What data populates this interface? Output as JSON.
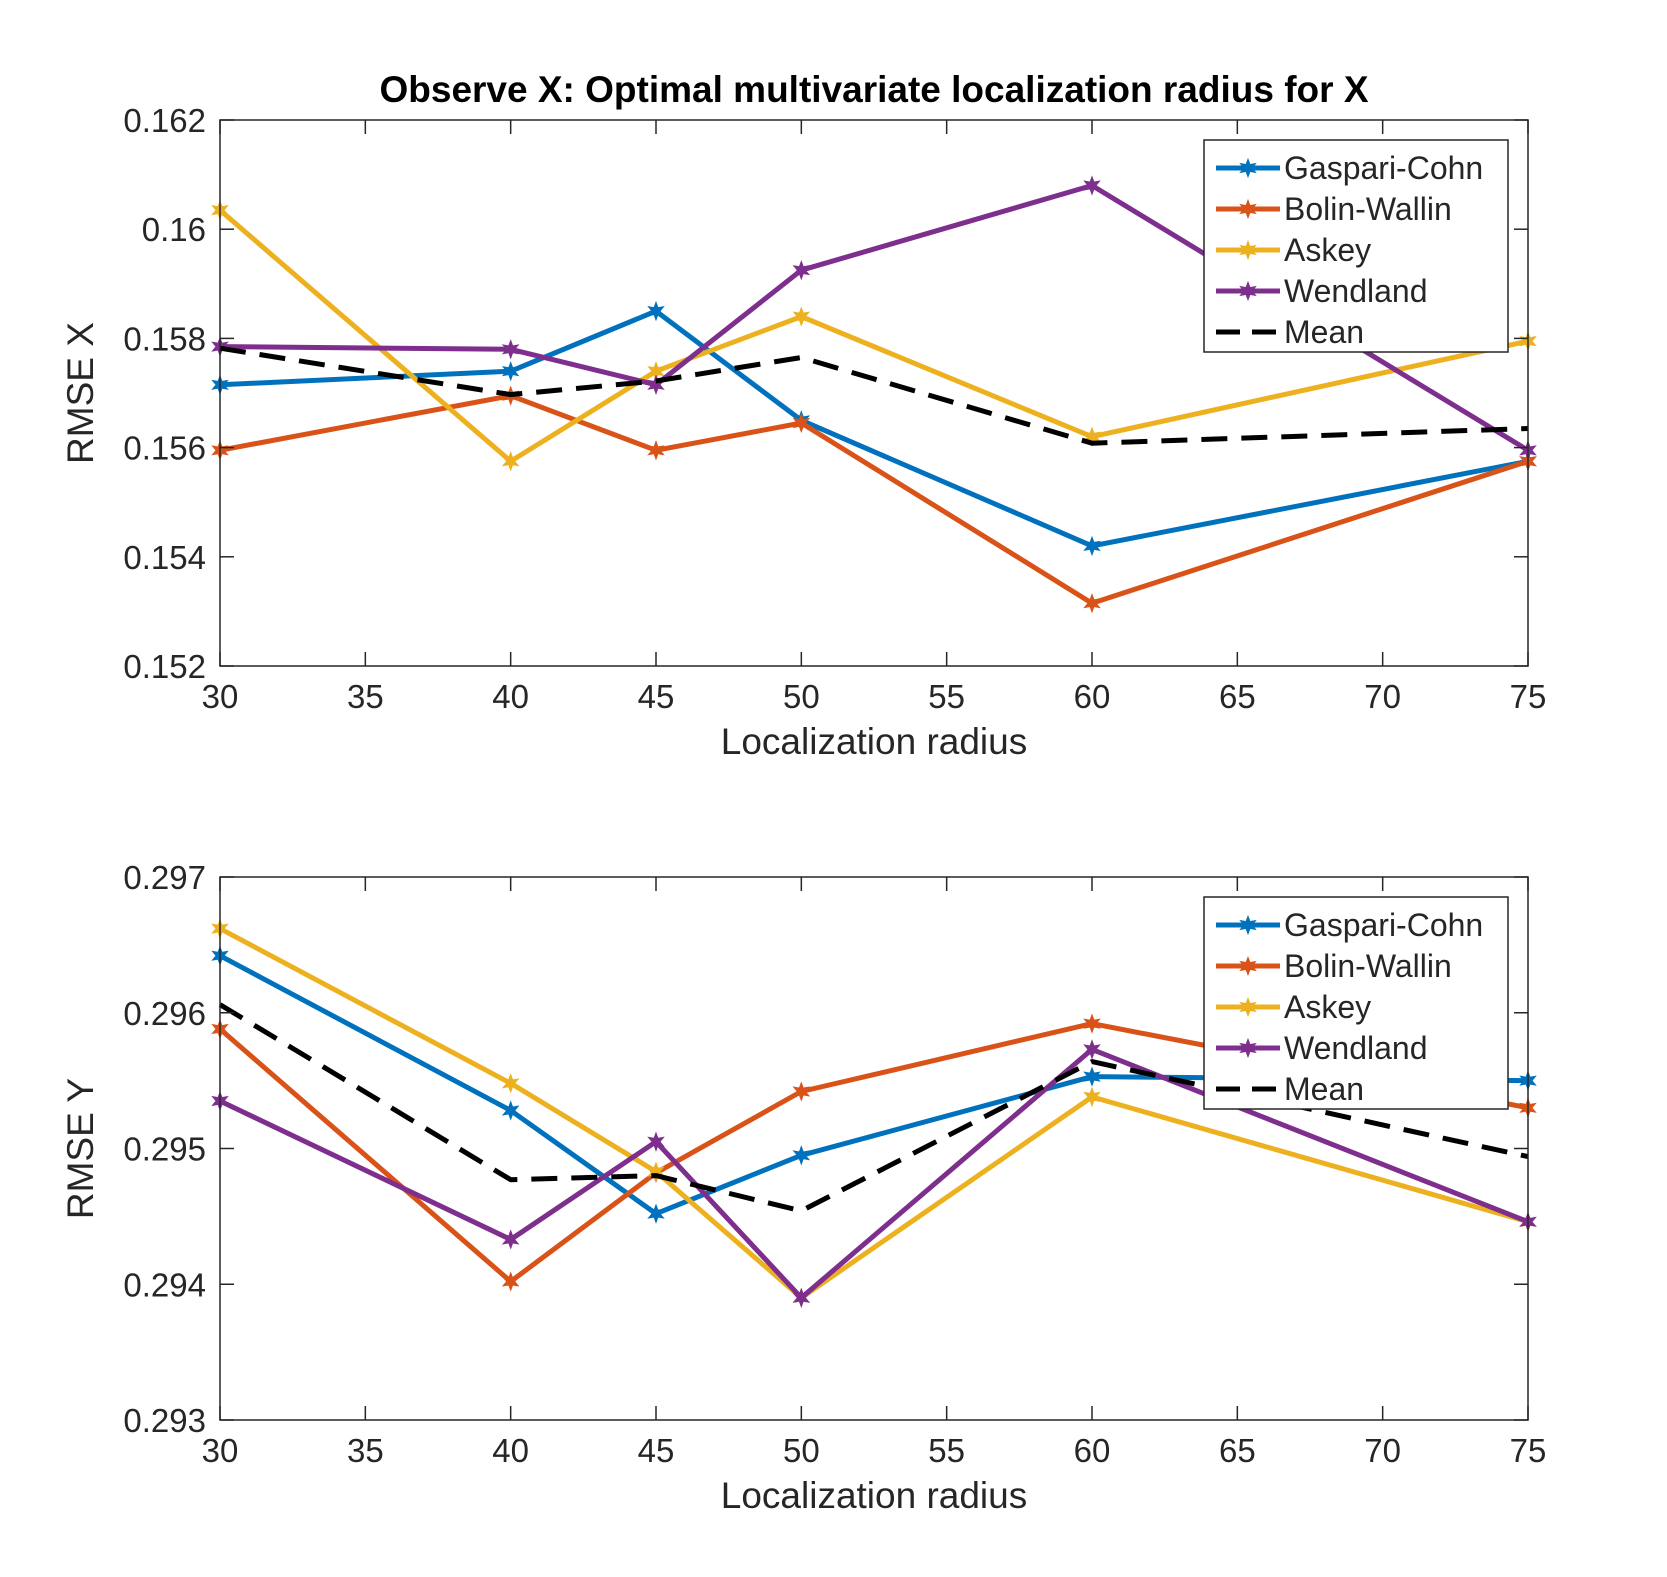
{
  "chart_data": [
    {
      "type": "line",
      "title": "Observe X: Optimal multivariate localization radius for X",
      "xlabel": "Localization radius",
      "ylabel": "RMSE X",
      "xlim": [
        30,
        75
      ],
      "ylim": [
        0.152,
        0.162
      ],
      "xticks": [
        30,
        35,
        40,
        45,
        50,
        55,
        60,
        65,
        70,
        75
      ],
      "yticks": [
        0.152,
        0.154,
        0.156,
        0.158,
        0.16,
        0.162
      ],
      "ytick_labels": [
        "0.152",
        "0.154",
        "0.156",
        "0.158",
        "0.16",
        "0.162"
      ],
      "grid": false,
      "legend": "top-right",
      "x": [
        30,
        40,
        45,
        50,
        60,
        75
      ],
      "series": [
        {
          "name": "Gaspari-Cohn",
          "color": "#0072BD",
          "dash": false,
          "marker": true,
          "values": [
            0.15715,
            0.1574,
            0.1585,
            0.1565,
            0.1542,
            0.15575
          ]
        },
        {
          "name": "Bolin-Wallin",
          "color": "#D95319",
          "dash": false,
          "marker": true,
          "values": [
            0.15595,
            0.15695,
            0.15595,
            0.15645,
            0.15315,
            0.15575
          ]
        },
        {
          "name": "Askey",
          "color": "#EDB120",
          "dash": false,
          "marker": true,
          "values": [
            0.16035,
            0.15575,
            0.1574,
            0.1584,
            0.1562,
            0.15795
          ]
        },
        {
          "name": "Wendland",
          "color": "#7E2F8E",
          "dash": false,
          "marker": true,
          "values": [
            0.15785,
            0.1578,
            0.15715,
            0.15925,
            0.1608,
            0.15595
          ]
        },
        {
          "name": "Mean",
          "color": "#000000",
          "dash": true,
          "marker": false,
          "values": [
            0.15782,
            0.15697,
            0.15722,
            0.15765,
            0.15608,
            0.15635
          ]
        }
      ]
    },
    {
      "type": "line",
      "title": "",
      "xlabel": "Localization radius",
      "ylabel": "RMSE Y",
      "xlim": [
        30,
        75
      ],
      "ylim": [
        0.293,
        0.297
      ],
      "xticks": [
        30,
        35,
        40,
        45,
        50,
        55,
        60,
        65,
        70,
        75
      ],
      "yticks": [
        0.293,
        0.294,
        0.295,
        0.296,
        0.297
      ],
      "ytick_labels": [
        "0.293",
        "0.294",
        "0.295",
        "0.296",
        "0.297"
      ],
      "grid": false,
      "legend": "top-right",
      "x": [
        30,
        40,
        45,
        50,
        60,
        75
      ],
      "series": [
        {
          "name": "Gaspari-Cohn",
          "color": "#0072BD",
          "dash": false,
          "marker": true,
          "values": [
            0.29642,
            0.29528,
            0.29452,
            0.29495,
            0.29553,
            0.2955
          ]
        },
        {
          "name": "Bolin-Wallin",
          "color": "#D95319",
          "dash": false,
          "marker": true,
          "values": [
            0.29588,
            0.29402,
            0.29482,
            0.29542,
            0.29592,
            0.2953
          ]
        },
        {
          "name": "Askey",
          "color": "#EDB120",
          "dash": false,
          "marker": true,
          "values": [
            0.29662,
            0.29548,
            0.29483,
            0.2939,
            0.29538,
            0.29446
          ]
        },
        {
          "name": "Wendland",
          "color": "#7E2F8E",
          "dash": false,
          "marker": true,
          "values": [
            0.29535,
            0.29433,
            0.29505,
            0.2939,
            0.29573,
            0.29446
          ]
        },
        {
          "name": "Mean",
          "color": "#000000",
          "dash": true,
          "marker": false,
          "values": [
            0.29606,
            0.29477,
            0.2948,
            0.29454,
            0.29564,
            0.29494
          ]
        }
      ]
    }
  ]
}
